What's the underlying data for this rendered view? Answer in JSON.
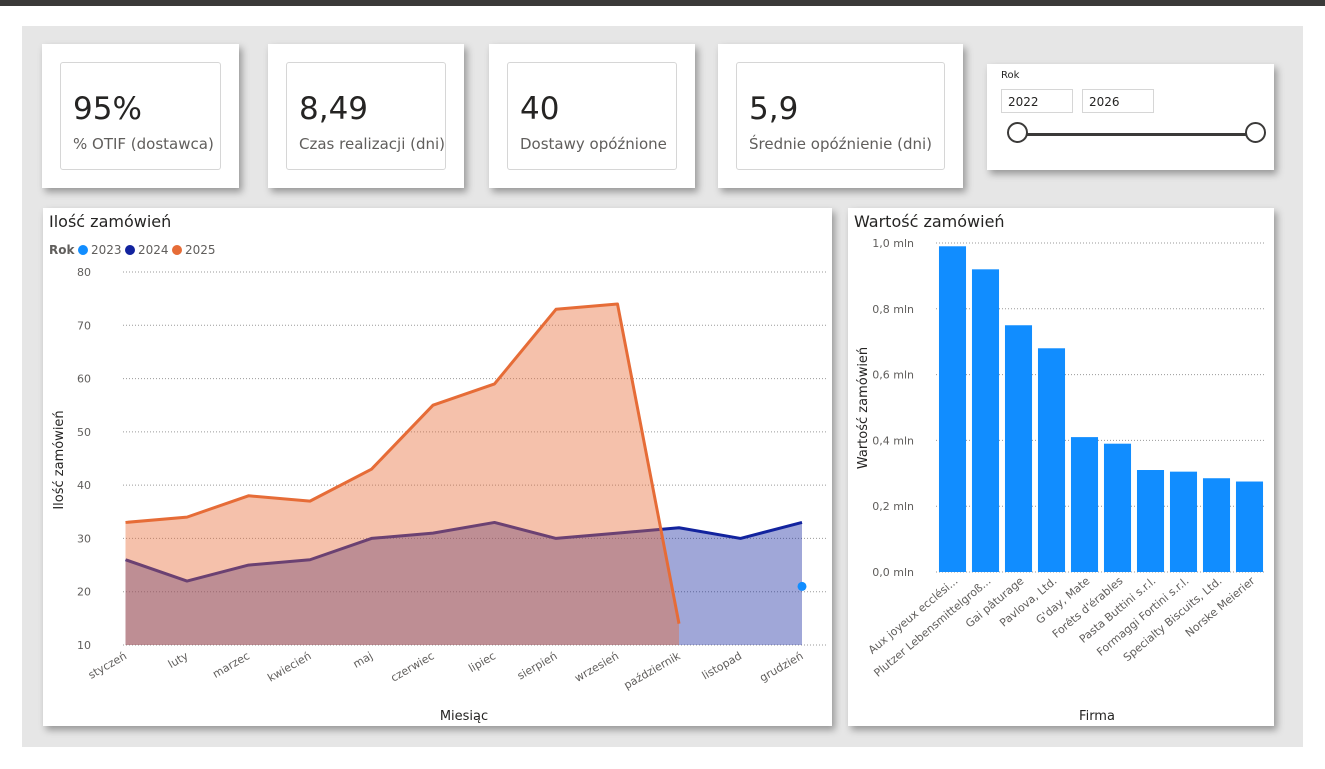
{
  "kpis": [
    {
      "value": "95%",
      "label": "% OTIF (dostawca)"
    },
    {
      "value": "8,49",
      "label": "Czas realizacji (dni)"
    },
    {
      "value": "40",
      "label": "Dostawy opóźnione"
    },
    {
      "value": "5,9",
      "label": "Średnie opóźnienie (dni)"
    }
  ],
  "slicer": {
    "title": "Rok",
    "from": "2022",
    "to": "2026",
    "range_start_fraction": 0,
    "range_end_fraction": 1
  },
  "charts": {
    "orders_count": {
      "title": "Ilość zamówień",
      "legend_title": "Rok"
    },
    "orders_value": {
      "title": "Wartość zamówień"
    }
  },
  "chart_data": [
    {
      "type": "area",
      "title": "Ilość zamówień",
      "xlabel": "Miesiąc",
      "ylabel": "Ilość zamówień",
      "legend_title": "Rok",
      "legend_position": "top-left",
      "grid": true,
      "ylim": [
        10,
        80
      ],
      "yticks": [
        10,
        20,
        30,
        40,
        50,
        60,
        70,
        80
      ],
      "categories": [
        "styczeń",
        "luty",
        "marzec",
        "kwiecień",
        "maj",
        "czerwiec",
        "lipiec",
        "sierpień",
        "wrzesień",
        "październik",
        "listopad",
        "grudzień"
      ],
      "series": [
        {
          "name": "2023",
          "color": "#118dff",
          "values": [
            null,
            null,
            null,
            null,
            null,
            null,
            null,
            null,
            null,
            null,
            null,
            21
          ]
        },
        {
          "name": "2024",
          "color": "#12239e",
          "values": [
            26,
            22,
            25,
            26,
            30,
            31,
            33,
            30,
            31,
            32,
            30,
            33
          ]
        },
        {
          "name": "2025",
          "color": "#e66c37",
          "values": [
            33,
            34,
            38,
            37,
            43,
            55,
            59,
            73,
            74,
            14,
            null,
            null
          ]
        }
      ]
    },
    {
      "type": "bar",
      "title": "Wartość zamówień",
      "xlabel": "Firma",
      "ylabel": "Wartość zamówień",
      "grid": true,
      "color": "#118dff",
      "ylim": [
        0,
        1000000
      ],
      "yticks": [
        0,
        200000,
        400000,
        600000,
        800000,
        1000000
      ],
      "ytick_labels": [
        "0,0 mln",
        "0,2 mln",
        "0,4 mln",
        "0,6 mln",
        "0,8 mln",
        "1,0 mln"
      ],
      "categories": [
        "Aux joyeux ecclési...",
        "Plutzer Lebensmittelgroß...",
        "Gai pâturage",
        "Pavlova, Ltd.",
        "G'day, Mate",
        "Forêts d'érables",
        "Pasta Buttini s.r.l.",
        "Formaggi Fortini s.r.l.",
        "Specialty Biscuits, Ltd.",
        "Norske Meierier"
      ],
      "values": [
        990000,
        920000,
        750000,
        680000,
        410000,
        390000,
        310000,
        305000,
        285000,
        275000
      ]
    }
  ]
}
